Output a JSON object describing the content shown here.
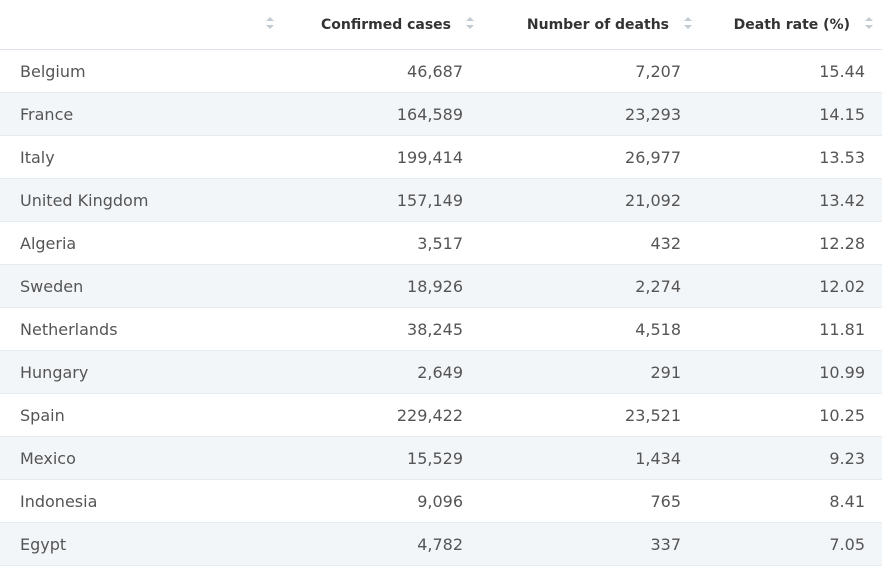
{
  "table": {
    "headers": [
      "Confirmed cases",
      "Number of deaths",
      "Death rate (%)"
    ],
    "rows": [
      [
        "Belgium",
        "46,687",
        "7,207",
        "15.44"
      ],
      [
        "France",
        "164,589",
        "23,293",
        "14.15"
      ],
      [
        "Italy",
        "199,414",
        "26,977",
        "13.53"
      ],
      [
        "United Kingdom",
        "157,149",
        "21,092",
        "13.42"
      ],
      [
        "Algeria",
        "3,517",
        "432",
        "12.28"
      ],
      [
        "Sweden",
        "18,926",
        "2,274",
        "12.02"
      ],
      [
        "Netherlands",
        "38,245",
        "4,518",
        "11.81"
      ],
      [
        "Hungary",
        "2,649",
        "291",
        "10.99"
      ],
      [
        "Spain",
        "229,422",
        "23,521",
        "10.25"
      ],
      [
        "Mexico",
        "15,529",
        "1,434",
        "9.23"
      ],
      [
        "Indonesia",
        "9,096",
        "765",
        "8.41"
      ],
      [
        "Egypt",
        "4,782",
        "337",
        "7.05"
      ]
    ]
  }
}
